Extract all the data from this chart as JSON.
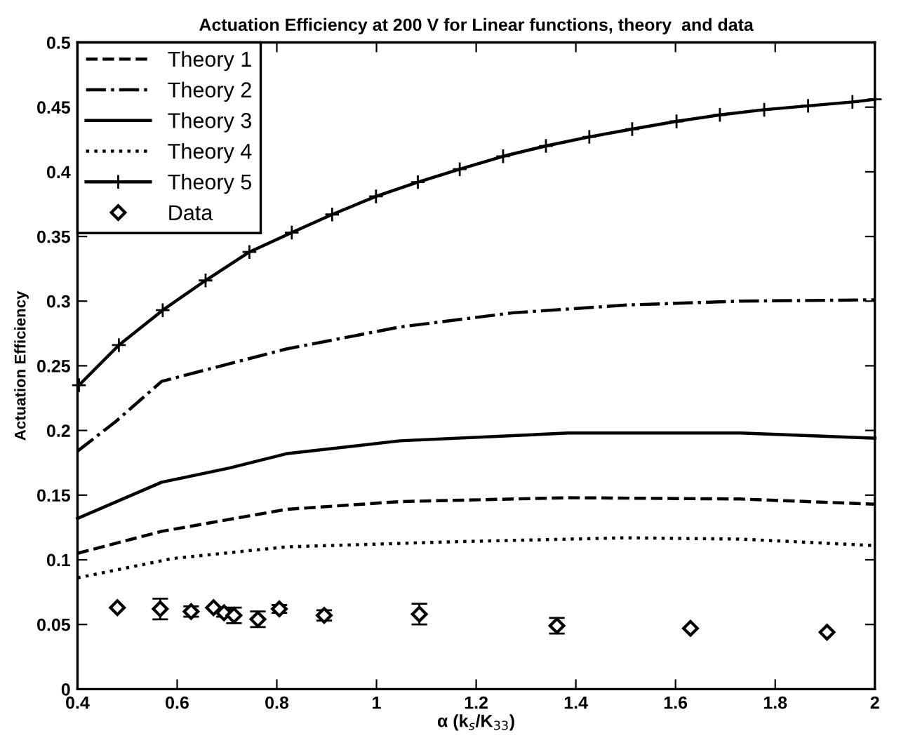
{
  "chart_data": {
    "type": "line",
    "title": "Actuation Efficiency at 200 V for Linear functions, theory  and data",
    "xlabel": "α (k$_{s}$/K$_{33}$)",
    "ylabel": "Actuation Efficiency",
    "xlim": [
      0.4,
      2
    ],
    "ylim": [
      0,
      0.5
    ],
    "xticks": [
      0.4,
      0.6,
      0.8,
      1,
      1.2,
      1.4,
      1.6,
      1.8,
      2
    ],
    "yticks": [
      0,
      0.05,
      0.1,
      0.15,
      0.2,
      0.25,
      0.3,
      0.35,
      0.4,
      0.45,
      0.5
    ],
    "grid": false,
    "legend": "top left",
    "series": [
      {
        "name": "Theory 1",
        "color": "#000000",
        "line_style": "dashed",
        "marker": "none",
        "x": [
          0.4,
          0.569,
          0.819,
          1.047,
          1.385,
          1.73,
          2.0
        ],
        "values": [
          0.105,
          0.122,
          0.139,
          0.145,
          0.148,
          0.147,
          0.143
        ]
      },
      {
        "name": "Theory 2",
        "color": "#000000",
        "line_style": "dashdot",
        "marker": "none",
        "x": [
          0.4,
          0.477,
          0.569,
          0.819,
          1.047,
          1.274,
          1.502,
          1.73,
          2.0
        ],
        "values": [
          0.184,
          0.207,
          0.238,
          0.263,
          0.28,
          0.291,
          0.297,
          0.3,
          0.301
        ]
      },
      {
        "name": "Theory 3",
        "color": "#000000",
        "line_style": "solid",
        "marker": "none",
        "x": [
          0.4,
          0.569,
          0.705,
          0.819,
          1.047,
          1.385,
          1.73,
          2.0
        ],
        "values": [
          0.132,
          0.16,
          0.171,
          0.182,
          0.192,
          0.198,
          0.198,
          0.194
        ]
      },
      {
        "name": "Theory 4",
        "color": "#000000",
        "line_style": "dotted",
        "marker": "none",
        "x": [
          0.4,
          0.591,
          0.819,
          1.16,
          1.5,
          1.73,
          2.0
        ],
        "values": [
          0.086,
          0.101,
          0.11,
          0.114,
          0.117,
          0.116,
          0.111
        ]
      },
      {
        "name": "Theory 5",
        "color": "#000000",
        "line_style": "solid",
        "marker": "cross",
        "x": [
          0.403,
          0.483,
          0.571,
          0.657,
          0.745,
          0.83,
          0.911,
          0.999,
          1.083,
          1.167,
          1.254,
          1.34,
          1.427,
          1.513,
          1.602,
          1.689,
          1.778,
          1.866,
          1.955,
          2.0
        ],
        "values": [
          0.235,
          0.266,
          0.293,
          0.316,
          0.338,
          0.353,
          0.367,
          0.381,
          0.392,
          0.402,
          0.412,
          0.42,
          0.427,
          0.433,
          0.439,
          0.444,
          0.448,
          0.451,
          0.454,
          0.456
        ]
      },
      {
        "name": "Data",
        "type": "scatter",
        "color": "#000000",
        "marker": "diamond",
        "x": [
          0.48,
          0.566,
          0.628,
          0.673,
          0.694,
          0.714,
          0.762,
          0.805,
          0.895,
          1.086,
          1.362,
          1.63,
          1.904
        ],
        "values": [
          0.063,
          0.062,
          0.06,
          0.063,
          0.059,
          0.057,
          0.054,
          0.062,
          0.057,
          0.058,
          0.049,
          0.047,
          0.044
        ],
        "errors": [
          null,
          0.008,
          0.004,
          null,
          0.003,
          0.006,
          0.006,
          0.003,
          0.004,
          0.008,
          0.006,
          null,
          null
        ]
      }
    ]
  }
}
